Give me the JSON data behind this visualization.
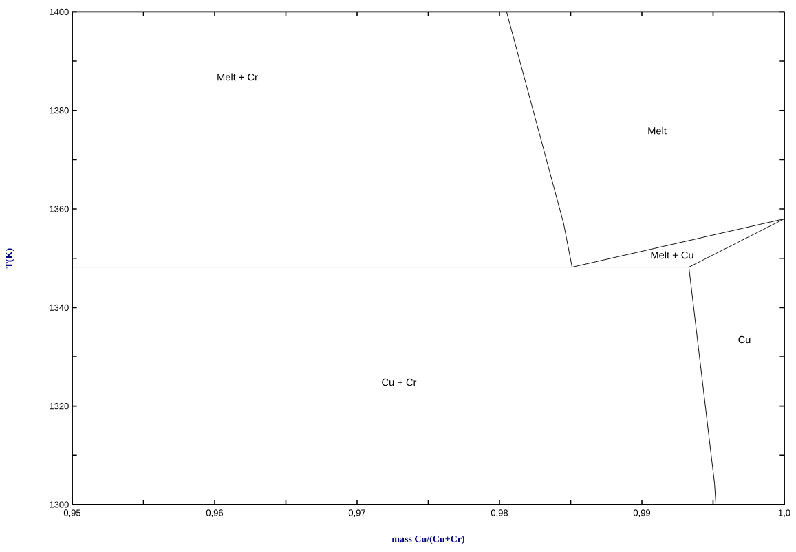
{
  "chart_data": {
    "type": "line",
    "xlabel": "mass Cu/(Cu+Cr)",
    "ylabel": "T(K)",
    "xlim": [
      0.95,
      1.0
    ],
    "ylim": [
      1300,
      1400
    ],
    "xticks": [
      {
        "value": 0.95,
        "label": "0,95"
      },
      {
        "value": 0.955,
        "label": null
      },
      {
        "value": 0.96,
        "label": "0,96"
      },
      {
        "value": 0.965,
        "label": null
      },
      {
        "value": 0.97,
        "label": "0,97"
      },
      {
        "value": 0.975,
        "label": null
      },
      {
        "value": 0.98,
        "label": "0,98"
      },
      {
        "value": 0.985,
        "label": null
      },
      {
        "value": 0.99,
        "label": "0,99"
      },
      {
        "value": 0.995,
        "label": null
      },
      {
        "value": 1.0,
        "label": "1,0"
      }
    ],
    "yticks": [
      1300,
      {
        "value": 1310,
        "label": null
      },
      1320,
      {
        "value": 1330,
        "label": null
      },
      1340,
      {
        "value": 1350,
        "label": null
      },
      1360,
      {
        "value": 1370,
        "label": null
      },
      1380,
      {
        "value": 1390,
        "label": null
      },
      1400
    ],
    "grid": false,
    "marker": "none",
    "line_style": "solid",
    "series": [
      {
        "color": "#000000",
        "x": [
          0.9805,
          0.9845,
          0.9851
        ],
        "values": [
          1400,
          1357.1,
          1348.2
        ]
      },
      {
        "color": "#000000",
        "x": [
          0.95,
          0.9933
        ],
        "values": [
          1348.2,
          1348.2
        ]
      },
      {
        "color": "#000000",
        "x": [
          0.9851,
          1.0
        ],
        "values": [
          1348.2,
          1358.0
        ]
      },
      {
        "color": "#000000",
        "x": [
          0.9933,
          1.0
        ],
        "values": [
          1348.2,
          1358.0
        ]
      },
      {
        "color": "#000000",
        "x": [
          0.9933,
          0.9951,
          0.9952
        ],
        "values": [
          1348.2,
          1304.3,
          1300
        ]
      }
    ],
    "annotations": [
      "Melt + Cr",
      "Melt",
      "Melt + Cu",
      "Cu",
      "Cu + Cr"
    ]
  }
}
